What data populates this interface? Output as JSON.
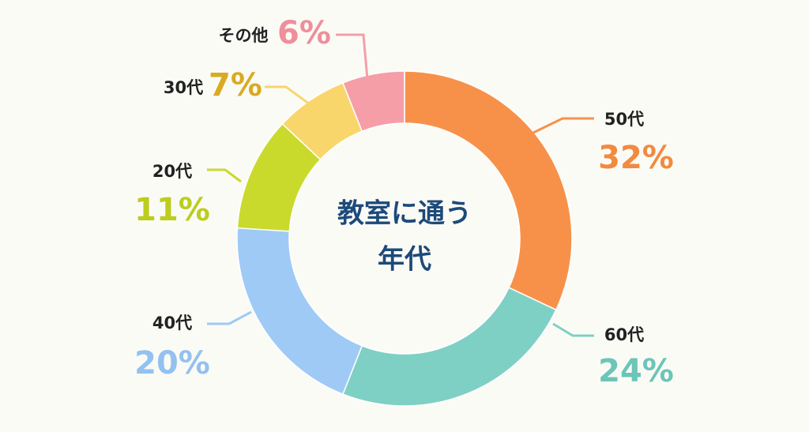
{
  "chart_data": {
    "type": "donut",
    "title": [
      "教室に通う",
      "年代"
    ],
    "categories": [
      "50代",
      "60代",
      "40代",
      "20代",
      "30代",
      "その他"
    ],
    "values": [
      32,
      24,
      20,
      11,
      7,
      6
    ],
    "value_labels": [
      "32%",
      "24%",
      "20%",
      "11%",
      "7%",
      "6%"
    ],
    "colors": [
      "#f7914a",
      "#7fd0c4",
      "#9fcaf6",
      "#c9da2c",
      "#f8d66c",
      "#f59ea8"
    ],
    "label_colors": [
      "#f28a3f",
      "#6cc5b8",
      "#93c1f0",
      "#bccd1e",
      "#d9aa22",
      "#ee8f9b"
    ]
  }
}
